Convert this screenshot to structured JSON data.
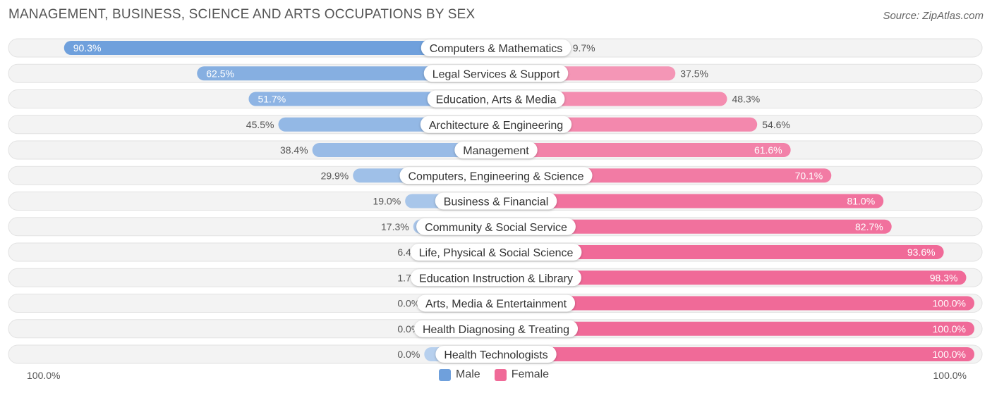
{
  "title": "MANAGEMENT, BUSINESS, SCIENCE AND ARTS OCCUPATIONS BY SEX",
  "source": "Source: ZipAtlas.com",
  "colors": {
    "male": "#6fa0dc",
    "female": "#f06a98",
    "track": "#efefef"
  },
  "legend": {
    "male_label": "Male",
    "female_label": "Female"
  },
  "axis": {
    "left_label": "100.0%",
    "right_label": "100.0%"
  },
  "chart_data": {
    "type": "bar",
    "orientation": "horizontal-diverging",
    "title": "MANAGEMENT, BUSINESS, SCIENCE AND ARTS OCCUPATIONS BY SEX",
    "categories": [
      "Computers & Mathematics",
      "Legal Services & Support",
      "Education, Arts & Media",
      "Architecture & Engineering",
      "Management",
      "Computers, Engineering & Science",
      "Business & Financial",
      "Community & Social Service",
      "Life, Physical & Social Science",
      "Education Instruction & Library",
      "Arts, Media & Entertainment",
      "Health Diagnosing & Treating",
      "Health Technologists"
    ],
    "series": [
      {
        "name": "Male",
        "values": [
          90.3,
          62.5,
          51.7,
          45.5,
          38.4,
          29.9,
          19.0,
          17.3,
          6.4,
          1.7,
          0.0,
          0.0,
          0.0
        ],
        "labels": [
          "90.3%",
          "62.5%",
          "51.7%",
          "45.5%",
          "38.4%",
          "29.9%",
          "19.0%",
          "17.3%",
          "6.4%",
          "1.7%",
          "0.0%",
          "0.0%",
          "0.0%"
        ]
      },
      {
        "name": "Female",
        "values": [
          9.7,
          37.5,
          48.3,
          54.6,
          61.6,
          70.1,
          81.0,
          82.7,
          93.6,
          98.3,
          100.0,
          100.0,
          100.0
        ],
        "labels": [
          "9.7%",
          "37.5%",
          "48.3%",
          "54.6%",
          "61.6%",
          "70.1%",
          "81.0%",
          "82.7%",
          "93.6%",
          "98.3%",
          "100.0%",
          "100.0%",
          "100.0%"
        ]
      }
    ],
    "xlim": [
      -100,
      100
    ],
    "legend_position": "bottom-center"
  }
}
